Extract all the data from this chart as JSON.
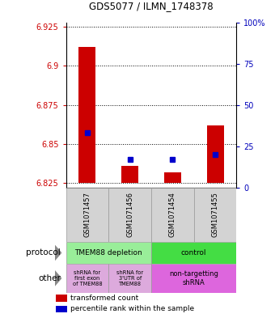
{
  "title": "GDS5077 / ILMN_1748378",
  "samples": [
    "GSM1071457",
    "GSM1071456",
    "GSM1071454",
    "GSM1071455"
  ],
  "transformed_counts": [
    6.912,
    6.836,
    6.832,
    6.862
  ],
  "bar_bottoms": [
    6.825,
    6.825,
    6.825,
    6.825
  ],
  "percentile_values": [
    6.857,
    6.84,
    6.84,
    6.843
  ],
  "ylim_min": 6.822,
  "ylim_max": 6.928,
  "left_yticks": [
    6.825,
    6.85,
    6.875,
    6.9,
    6.925
  ],
  "right_yticks": [
    0,
    25,
    50,
    75,
    100
  ],
  "right_ytick_labels": [
    "0",
    "25",
    "50",
    "75",
    "100%"
  ],
  "bar_color_red": "#cc0000",
  "bar_color_blue": "#0000cc",
  "bg_color": "#d3d3d3",
  "left_label_color": "#cc0000",
  "right_label_color": "#0000bb",
  "prot_depletion_color": "#99ee99",
  "prot_control_color": "#44dd44",
  "other_shrna_color": "#ddaadd",
  "other_nontarget_color": "#dd66dd"
}
